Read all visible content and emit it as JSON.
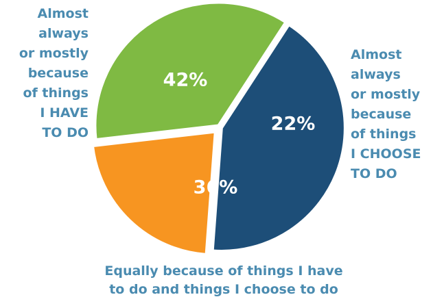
{
  "chart_data": {
    "type": "pie",
    "slices": [
      {
        "value": 42,
        "value_label": "42%",
        "label_lines": [
          "Almost",
          "always",
          "or mostly",
          "because",
          "of things",
          "I HAVE",
          "TO DO"
        ],
        "color": "#1d4e78"
      },
      {
        "value": 22,
        "value_label": "22%",
        "label_lines": [
          "Almost",
          "always",
          "or mostly",
          "because",
          "of things",
          "I CHOOSE",
          "TO DO"
        ],
        "color": "#f79521"
      },
      {
        "value": 36,
        "value_label": "36%",
        "label_lines": [
          "Equally because of things I have",
          "to do and things I choose to do"
        ],
        "color": "#7fba43"
      }
    ],
    "label_color": "#4a8bb0",
    "legend": "none"
  }
}
